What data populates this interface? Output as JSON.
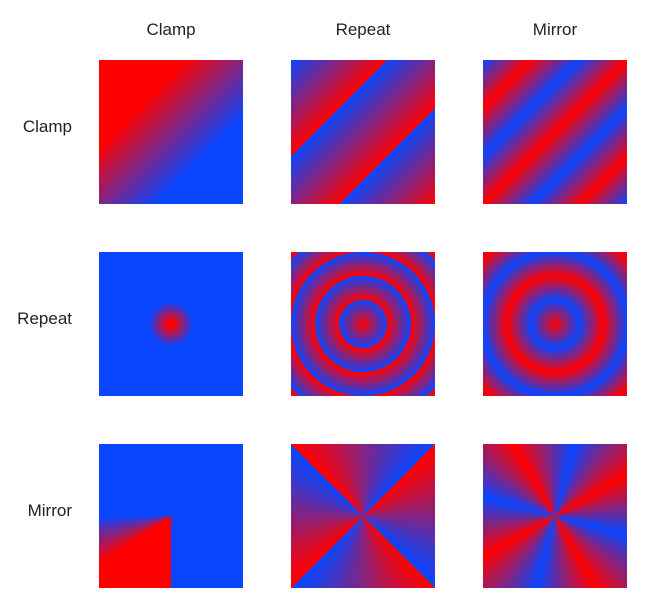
{
  "columns": [
    "Clamp",
    "Repeat",
    "Mirror"
  ],
  "rows": [
    "Clamp",
    "Repeat",
    "Mirror"
  ],
  "colors": {
    "red": "#ff0000",
    "blue": "#0a46ff"
  },
  "grid": [
    [
      "linear-clamp",
      "linear-repeat",
      "linear-mirror"
    ],
    [
      "radial-clamp",
      "radial-repeat",
      "radial-mirror"
    ],
    [
      "sweep-clamp",
      "sweep-repeat",
      "sweep-mirror"
    ]
  ]
}
